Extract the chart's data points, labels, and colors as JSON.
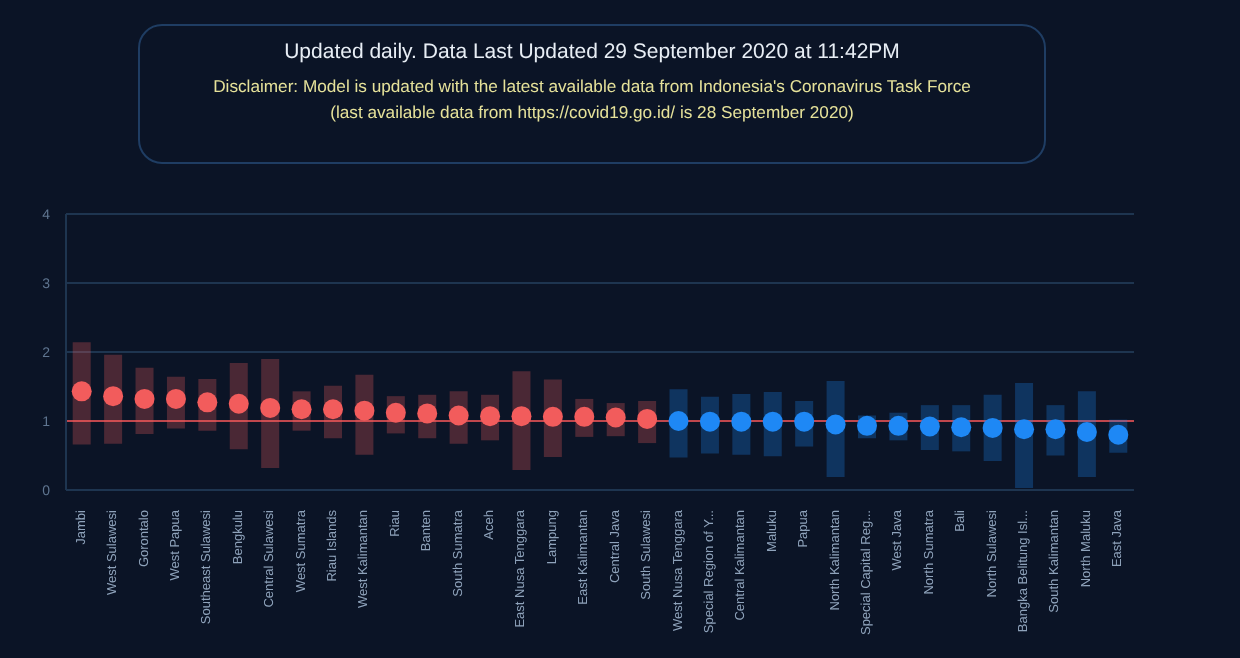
{
  "chart_data": {
    "type": "scatter",
    "title": "Updated daily. Data Last Updated 29 September 2020 at 11:42PM",
    "subtitle": "Disclaimer: Model is updated with the latest available data from Indonesia's Coronavirus Task Force (last available data from https://covid19.go.id/ is 28 September 2020)",
    "categories": [
      "Jambi",
      "West Sulawesi",
      "Gorontalo",
      "West Papua",
      "Southeast Sulawesi",
      "Bengkulu",
      "Central Sulawesi",
      "West Sumatra",
      "Riau Islands",
      "West Kalimantan",
      "Riau",
      "Banten",
      "South Sumatra",
      "Aceh",
      "East Nusa Tenggara",
      "Lampung",
      "East Kalimantan",
      "Central Java",
      "South Sulawesi",
      "West Nusa Tenggara",
      "Special Region of Y...",
      "Central Kalimantan",
      "Maluku",
      "Papua",
      "North Kalimantan",
      "Special Capital Reg...",
      "West Java",
      "North Sumatra",
      "Bali",
      "North Sulawesi",
      "Bangka Belitung Isl...",
      "South Kalimantan",
      "North Maluku",
      "East Java"
    ],
    "values": [
      1.43,
      1.36,
      1.32,
      1.32,
      1.27,
      1.25,
      1.19,
      1.17,
      1.17,
      1.15,
      1.12,
      1.11,
      1.08,
      1.07,
      1.07,
      1.06,
      1.06,
      1.05,
      1.03,
      1.0,
      0.99,
      0.99,
      0.99,
      0.99,
      0.95,
      0.93,
      0.93,
      0.92,
      0.91,
      0.9,
      0.88,
      0.88,
      0.84,
      0.8
    ],
    "errors": [
      [
        0.66,
        2.14
      ],
      [
        0.67,
        1.96
      ],
      [
        0.81,
        1.77
      ],
      [
        0.89,
        1.64
      ],
      [
        0.86,
        1.61
      ],
      [
        0.59,
        1.84
      ],
      [
        0.32,
        1.9
      ],
      [
        0.86,
        1.43
      ],
      [
        0.75,
        1.51
      ],
      [
        0.51,
        1.67
      ],
      [
        0.82,
        1.36
      ],
      [
        0.75,
        1.38
      ],
      [
        0.67,
        1.43
      ],
      [
        0.72,
        1.38
      ],
      [
        0.29,
        1.72
      ],
      [
        0.48,
        1.6
      ],
      [
        0.77,
        1.32
      ],
      [
        0.78,
        1.26
      ],
      [
        0.68,
        1.29
      ],
      [
        0.47,
        1.46
      ],
      [
        0.53,
        1.35
      ],
      [
        0.51,
        1.39
      ],
      [
        0.49,
        1.42
      ],
      [
        0.63,
        1.29
      ],
      [
        0.19,
        1.58
      ],
      [
        0.75,
        1.08
      ],
      [
        0.72,
        1.12
      ],
      [
        0.58,
        1.23
      ],
      [
        0.56,
        1.23
      ],
      [
        0.42,
        1.38
      ],
      [
        0.03,
        1.55
      ],
      [
        0.5,
        1.23
      ],
      [
        0.19,
        1.43
      ],
      [
        0.54,
        1.02
      ]
    ],
    "colors": [
      "#f25c5c",
      "#f25c5c",
      "#f25c5c",
      "#f25c5c",
      "#f25c5c",
      "#f25c5c",
      "#f25c5c",
      "#f25c5c",
      "#f25c5c",
      "#f25c5c",
      "#f25c5c",
      "#f25c5c",
      "#f25c5c",
      "#f25c5c",
      "#f25c5c",
      "#f25c5c",
      "#f25c5c",
      "#f25c5c",
      "#f25c5c",
      "#1e88f5",
      "#1e88f5",
      "#1e88f5",
      "#1e88f5",
      "#1e88f5",
      "#1e88f5",
      "#1e88f5",
      "#1e88f5",
      "#1e88f5",
      "#1e88f5",
      "#1e88f5",
      "#1e88f5",
      "#1e88f5",
      "#1e88f5",
      "#1e88f5"
    ],
    "ylim": [
      0,
      4
    ],
    "yticks": [
      0,
      1,
      2,
      3,
      4
    ],
    "grid": "y",
    "marker": "circle",
    "ref_lines": [
      {
        "axis": "y",
        "value": 1,
        "color": "#c0474d"
      }
    ]
  }
}
